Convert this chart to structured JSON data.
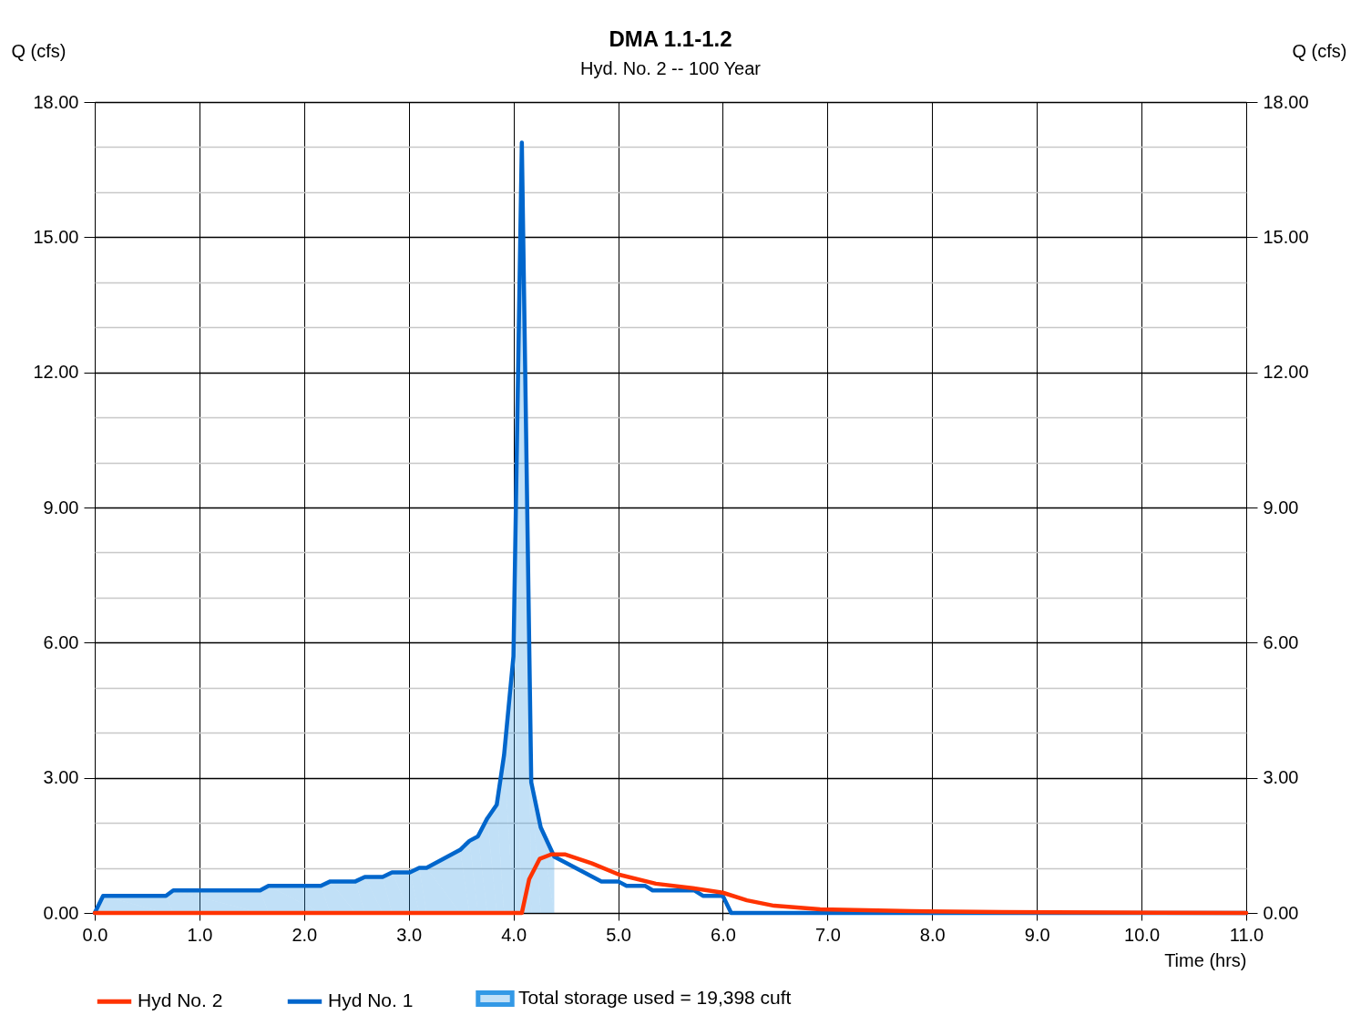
{
  "chart_data": {
    "type": "line",
    "title": "DMA 1.1-1.2",
    "subtitle": "Hyd. No. 2 -- 100 Year",
    "xlabel": "Time (hrs)",
    "ylabel": "Q (cfs)",
    "y2label": "Q (cfs)",
    "series": [
      {
        "name": "Hyd No. 2",
        "color": "#ff3300",
        "x": [
          0,
          4.08,
          4.15,
          4.25,
          4.36,
          4.49,
          4.75,
          5.01,
          5.36,
          5.71,
          6.0,
          6.23,
          6.49,
          6.93,
          7.8,
          8.67,
          11
        ],
        "values": [
          0,
          0,
          0.75,
          1.2,
          1.3,
          1.3,
          1.1,
          0.85,
          0.65,
          0.55,
          0.45,
          0.28,
          0.16,
          0.08,
          0.04,
          0.02,
          0
        ]
      },
      {
        "name": "Hyd No. 1",
        "color": "#0066cc",
        "x": [
          0,
          0.08,
          0.68,
          0.75,
          1.58,
          1.66,
          2.16,
          2.25,
          2.49,
          2.58,
          2.75,
          2.84,
          3.01,
          3.1,
          3.17,
          3.49,
          3.58,
          3.66,
          3.75,
          3.84,
          3.91,
          4.0,
          4.08,
          4.17,
          4.26,
          4.39,
          4.84,
          5.0,
          5.08,
          5.26,
          5.33,
          5.73,
          5.81,
          6.0,
          6.08,
          11
        ],
        "values": [
          0,
          0.38,
          0.38,
          0.5,
          0.5,
          0.6,
          0.6,
          0.7,
          0.7,
          0.8,
          0.8,
          0.9,
          0.9,
          1.0,
          1.0,
          1.4,
          1.6,
          1.7,
          2.1,
          2.4,
          3.5,
          5.7,
          17.1,
          2.9,
          1.9,
          1.25,
          0.7,
          0.7,
          0.6,
          0.6,
          0.5,
          0.5,
          0.38,
          0.38,
          0,
          0
        ]
      },
      {
        "name": "Total storage used = 19,398 cuft",
        "type": "area",
        "color": "#3399e6",
        "x": [
          0,
          0.08,
          0.68,
          0.75,
          1.58,
          1.66,
          2.16,
          2.25,
          2.49,
          2.58,
          2.75,
          2.84,
          3.01,
          3.1,
          3.17,
          3.49,
          3.58,
          3.66,
          3.75,
          3.84,
          3.91,
          4.0,
          4.08,
          4.17,
          4.26,
          4.39
        ],
        "values": [
          0,
          0.38,
          0.38,
          0.5,
          0.5,
          0.6,
          0.6,
          0.7,
          0.7,
          0.8,
          0.8,
          0.9,
          0.9,
          1.0,
          1.0,
          1.4,
          1.6,
          1.7,
          2.1,
          2.4,
          3.5,
          5.7,
          17.1,
          2.9,
          1.9,
          1.25
        ]
      }
    ],
    "xlim": [
      0,
      11
    ],
    "xticks": [
      {
        "value": 0,
        "label": "0.0"
      },
      {
        "value": 1,
        "label": "1.0"
      },
      {
        "value": 2,
        "label": "2.0"
      },
      {
        "value": 3,
        "label": "3.0"
      },
      {
        "value": 4,
        "label": "4.0"
      },
      {
        "value": 5,
        "label": "5.0"
      },
      {
        "value": 6,
        "label": "6.0"
      },
      {
        "value": 7,
        "label": "7.0"
      },
      {
        "value": 8,
        "label": "8.0"
      },
      {
        "value": 9,
        "label": "9.0"
      },
      {
        "value": 10,
        "label": "10.0"
      },
      {
        "value": 11,
        "label": "11.0"
      }
    ],
    "ylim": [
      0,
      18
    ],
    "yticks": [
      {
        "value": 0,
        "label": "0.00"
      },
      {
        "value": 1,
        "label": null
      },
      {
        "value": 2,
        "label": null
      },
      {
        "value": 3,
        "label": "3.00"
      },
      {
        "value": 4,
        "label": null
      },
      {
        "value": 5,
        "label": null
      },
      {
        "value": 6,
        "label": "6.00"
      },
      {
        "value": 7,
        "label": null
      },
      {
        "value": 8,
        "label": null
      },
      {
        "value": 9,
        "label": "9.00"
      },
      {
        "value": 10,
        "label": null
      },
      {
        "value": 11,
        "label": null
      },
      {
        "value": 12,
        "label": "12.00"
      },
      {
        "value": 13,
        "label": null
      },
      {
        "value": 14,
        "label": null
      },
      {
        "value": 15,
        "label": "15.00"
      },
      {
        "value": 16,
        "label": null
      },
      {
        "value": 17,
        "label": null
      },
      {
        "value": 18,
        "label": "18.00"
      }
    ],
    "y2lim": [
      0,
      18
    ],
    "y2ticks": [
      {
        "value": 0,
        "label": "0.00"
      },
      {
        "value": 3,
        "label": "3.00"
      },
      {
        "value": 6,
        "label": "6.00"
      },
      {
        "value": 9,
        "label": "9.00"
      },
      {
        "value": 12,
        "label": "12.00"
      },
      {
        "value": 15,
        "label": "15.00"
      },
      {
        "value": 18,
        "label": "18.00"
      }
    ],
    "grid": true,
    "legend": "bottom",
    "line_style": "solid"
  }
}
